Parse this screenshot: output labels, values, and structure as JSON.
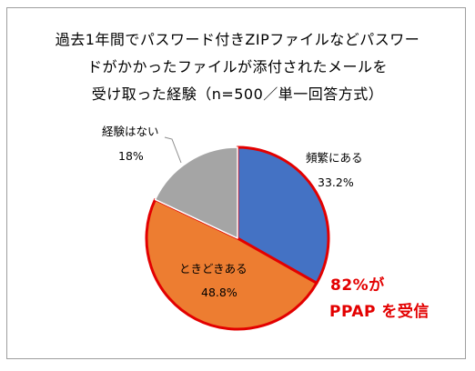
{
  "title": {
    "line1": "過去1年間でパスワード付きZIPファイルなどパスワー",
    "line2": "ドがかかったファイルが添付されたメールを",
    "line3": "受け取った経験（n=500／単一回答方式）"
  },
  "chart_data": {
    "type": "pie",
    "title": "過去1年間でパスワード付きZIPファイルなどパスワードがかかったファイルが添付されたメールを受け取った経験（n=500／単一回答方式）",
    "slices": [
      {
        "label": "頻繁にある",
        "value": 33.2,
        "value_label": "33.2%",
        "color": "#4472c4"
      },
      {
        "label": "ときどきある",
        "value": 48.8,
        "value_label": "48.8%",
        "color": "#ed7d31"
      },
      {
        "label": "経験はない",
        "value": 18,
        "value_label": "18%",
        "color": "#a5a5a5"
      }
    ],
    "highlight_color": "#e30000",
    "annotation": {
      "line1": "82%が",
      "line2": "PPAP を受信"
    }
  }
}
